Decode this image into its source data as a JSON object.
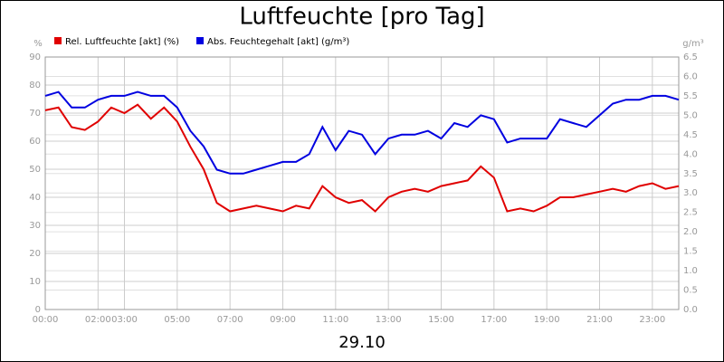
{
  "chart_data": {
    "type": "line",
    "title": "Luftfeuchte [pro Tag]",
    "subtitle": "29.10",
    "y_unit": "%",
    "y2_unit": "g/m³",
    "xlim": [
      0,
      24
    ],
    "xticks": [
      {
        "value": 0,
        "label": "00:00"
      },
      {
        "value": 2,
        "label": "02:00"
      },
      {
        "value": 3,
        "label": "03:00"
      },
      {
        "value": 5,
        "label": "05:00"
      },
      {
        "value": 7,
        "label": "07:00"
      },
      {
        "value": 9,
        "label": "09:00"
      },
      {
        "value": 11,
        "label": "11:00"
      },
      {
        "value": 13,
        "label": "13:00"
      },
      {
        "value": 15,
        "label": "15:00"
      },
      {
        "value": 17,
        "label": "17:00"
      },
      {
        "value": 19,
        "label": "19:00"
      },
      {
        "value": 21,
        "label": "21:00"
      },
      {
        "value": 23,
        "label": "23:00"
      }
    ],
    "ylim": [
      0,
      90
    ],
    "yticks": [
      0,
      10,
      20,
      30,
      40,
      50,
      60,
      70,
      80,
      90
    ],
    "y2lim": [
      0,
      6.5
    ],
    "y2ticks": [
      {
        "value": 0,
        "label": "0.0"
      },
      0.5,
      {
        "value": 1,
        "label": "1.0"
      },
      1.5,
      {
        "value": 2,
        "label": "2.0"
      },
      2.5,
      {
        "value": 3,
        "label": "3.0"
      },
      3.5,
      {
        "value": 4,
        "label": "4.0"
      },
      4.5,
      {
        "value": 5,
        "label": "5.0"
      },
      5.5,
      {
        "value": 6,
        "label": "6.0"
      },
      6.5
    ],
    "grid": true,
    "x": [
      0,
      0.5,
      1,
      1.5,
      2,
      2.5,
      3,
      3.5,
      4,
      4.5,
      5,
      5.5,
      6,
      6.5,
      7,
      7.5,
      8,
      8.5,
      9,
      9.5,
      10,
      10.5,
      11,
      11.5,
      12,
      12.5,
      13,
      13.5,
      14,
      14.5,
      15,
      15.5,
      16,
      16.5,
      17,
      17.5,
      18,
      18.5,
      19,
      19.5,
      20,
      20.5,
      21,
      21.5,
      22,
      22.5,
      23,
      23.5,
      24
    ],
    "series": [
      {
        "name": "Rel. Luftfeuchte [akt] (%)",
        "color": "#e00000",
        "values": [
          71,
          72,
          65,
          64,
          67,
          72,
          70,
          73,
          68,
          72,
          67,
          58,
          50,
          38,
          35,
          36,
          37,
          36,
          35,
          37,
          36,
          44,
          40,
          38,
          39,
          35,
          40,
          42,
          43,
          42,
          44,
          45,
          46,
          51,
          47,
          35,
          36,
          35,
          37,
          40,
          40,
          41,
          42,
          43,
          42,
          44,
          45,
          43,
          44
        ]
      },
      {
        "name": "Abs. Feuchtegehalt [akt] (g/m³)",
        "color": "#0000e0",
        "axis": "y2",
        "values": [
          5.5,
          5.6,
          5.2,
          5.2,
          5.4,
          5.5,
          5.5,
          5.6,
          5.5,
          5.5,
          5.2,
          4.6,
          4.2,
          3.6,
          3.5,
          3.5,
          3.6,
          3.7,
          3.8,
          3.8,
          4.0,
          4.7,
          4.1,
          4.6,
          4.5,
          4.0,
          4.4,
          4.5,
          4.5,
          4.6,
          4.4,
          4.8,
          4.7,
          5.0,
          4.9,
          4.3,
          4.4,
          4.4,
          4.4,
          4.9,
          4.8,
          4.7,
          5.0,
          5.3,
          5.4,
          5.4,
          5.5,
          5.5,
          5.4
        ]
      }
    ]
  }
}
